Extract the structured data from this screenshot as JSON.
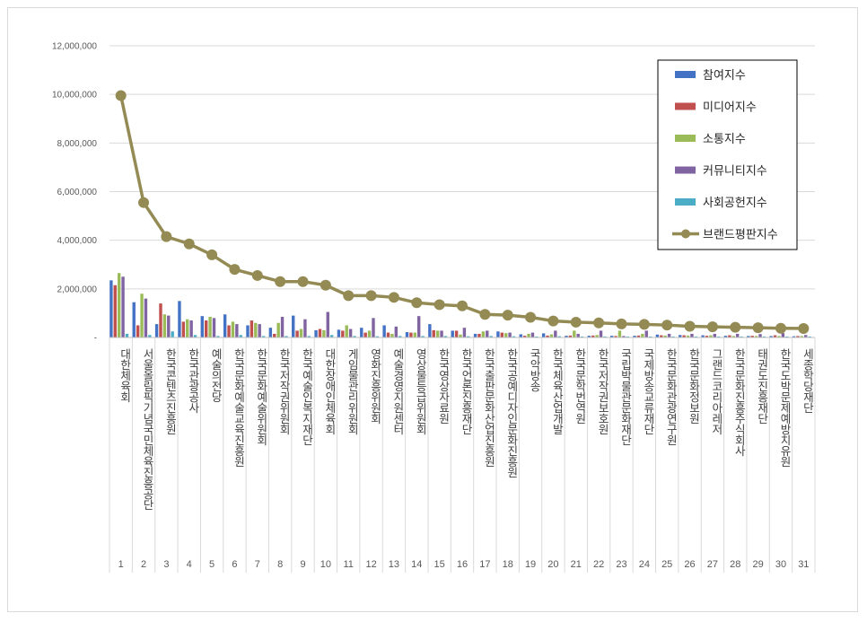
{
  "chart_data": {
    "type": "bar",
    "title": "",
    "xlabel": "",
    "ylabel": "",
    "ylim": [
      0,
      12000000
    ],
    "yticks": [
      0,
      2000000,
      4000000,
      6000000,
      8000000,
      10000000,
      12000000
    ],
    "ytick_labels": [
      "-",
      "2,000,000",
      "4,000,000",
      "6,000,000",
      "8,000,000",
      "10,000,000",
      "12,000,000"
    ],
    "grid": true,
    "legend_position": "top-right",
    "ranks": [
      "1",
      "2",
      "3",
      "4",
      "5",
      "6",
      "7",
      "8",
      "9",
      "10",
      "11",
      "12",
      "13",
      "14",
      "15",
      "16",
      "17",
      "18",
      "19",
      "20",
      "21",
      "22",
      "23",
      "24",
      "25",
      "26",
      "27",
      "28",
      "29",
      "30",
      "31"
    ],
    "categories": [
      "대한체육회",
      "서울올림픽기념국민체육진흥공단",
      "한국콘텐츠진흥원",
      "한국관광공사",
      "예술의전당",
      "한국문화예술교육진흥원",
      "한국문화예술위원회",
      "한국저작권위원회",
      "한국예술인복지재단",
      "대한장애인체육회",
      "게임물관리위원회",
      "영화진흥위원회",
      "예술경영지원센터",
      "영상물등급위원회",
      "한국영상자료원",
      "한국언론진흥재단",
      "한국출판문화산업진흥원",
      "한국공예디자인문화진흥원",
      "국악방송",
      "한국체육산업개발",
      "한국문학번역원",
      "한국저작권보호원",
      "국립박물관문화재단",
      "국제방송교류재단",
      "한국문화관광연구원",
      "한국문화정보원",
      "그랜드코리아레저",
      "한국문화진흥주식회사",
      "태권도진흥재단",
      "한국도박문제예방치유원",
      "세종학당재단"
    ],
    "series": [
      {
        "name": "참여지수",
        "type": "bar",
        "color": "#4472c4",
        "values": [
          2350000,
          1450000,
          550000,
          1500000,
          880000,
          950000,
          500000,
          400000,
          900000,
          300000,
          320000,
          400000,
          500000,
          220000,
          550000,
          280000,
          150000,
          250000,
          130000,
          170000,
          70000,
          70000,
          70000,
          70000,
          120000,
          100000,
          90000,
          70000,
          60000,
          60000,
          50000
        ]
      },
      {
        "name": "미디어지수",
        "type": "bar",
        "color": "#c0504d",
        "values": [
          2150000,
          500000,
          1400000,
          650000,
          700000,
          500000,
          700000,
          150000,
          280000,
          350000,
          280000,
          200000,
          200000,
          200000,
          300000,
          280000,
          150000,
          200000,
          70000,
          80000,
          80000,
          80000,
          60000,
          80000,
          90000,
          90000,
          70000,
          90000,
          70000,
          90000,
          60000
        ]
      },
      {
        "name": "소통지수",
        "type": "bar",
        "color": "#9bbb59",
        "values": [
          2650000,
          1800000,
          950000,
          750000,
          850000,
          650000,
          600000,
          600000,
          350000,
          300000,
          500000,
          280000,
          150000,
          200000,
          280000,
          120000,
          250000,
          180000,
          150000,
          130000,
          280000,
          100000,
          280000,
          150000,
          80000,
          80000,
          90000,
          60000,
          60000,
          60000,
          60000
        ]
      },
      {
        "name": "커뮤니티지수",
        "type": "bar",
        "color": "#8064a2",
        "values": [
          2500000,
          1600000,
          900000,
          700000,
          800000,
          550000,
          550000,
          850000,
          750000,
          1050000,
          350000,
          800000,
          450000,
          880000,
          280000,
          400000,
          280000,
          200000,
          200000,
          280000,
          150000,
          280000,
          60000,
          280000,
          150000,
          150000,
          150000,
          150000,
          140000,
          180000,
          100000
        ]
      },
      {
        "name": "사회공헌지수",
        "type": "bar",
        "color": "#4bacc6",
        "values": [
          150000,
          100000,
          250000,
          100000,
          60000,
          100000,
          60000,
          60000,
          60000,
          100000,
          60000,
          50000,
          60000,
          60000,
          60000,
          50000,
          60000,
          50000,
          40000,
          50000,
          40000,
          40000,
          40000,
          40000,
          40000,
          40000,
          40000,
          40000,
          40000,
          40000,
          40000
        ]
      },
      {
        "name": "브랜드평판지수",
        "type": "line",
        "color": "#948a54",
        "values": [
          9950000,
          5550000,
          4150000,
          3850000,
          3400000,
          2800000,
          2550000,
          2300000,
          2300000,
          2150000,
          1720000,
          1720000,
          1650000,
          1430000,
          1350000,
          1300000,
          950000,
          920000,
          830000,
          680000,
          630000,
          600000,
          560000,
          540000,
          510000,
          460000,
          440000,
          420000,
          400000,
          380000,
          370000
        ]
      }
    ]
  }
}
